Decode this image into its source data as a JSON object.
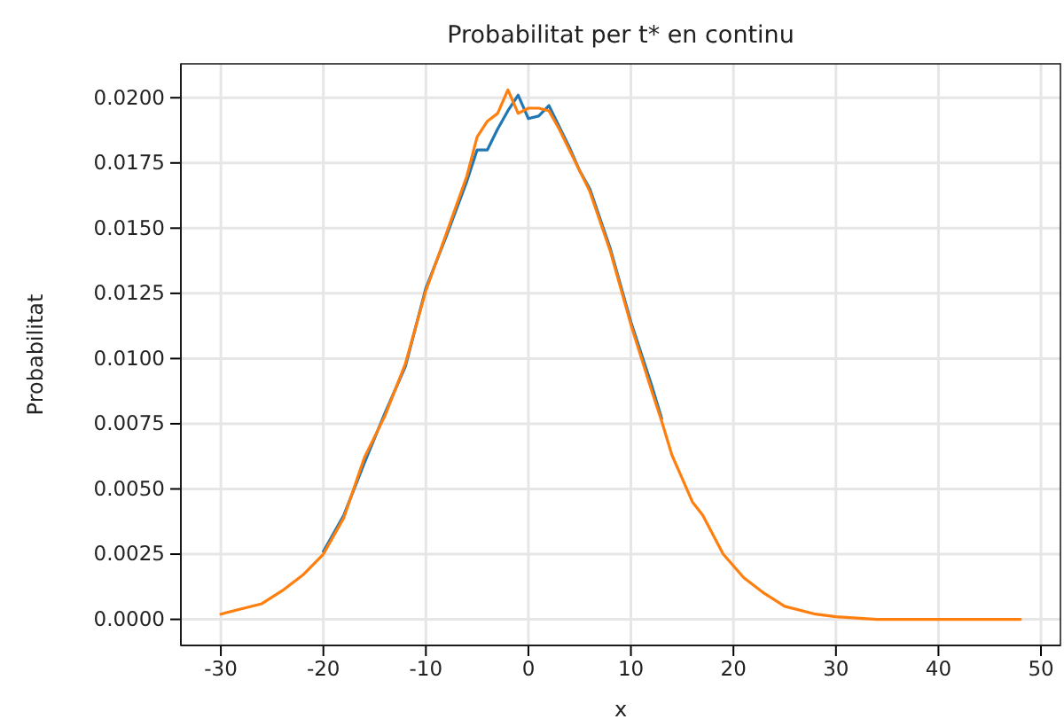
{
  "chart_data": {
    "type": "line",
    "title": "Probabilitat per t* en continu",
    "xlabel": "x",
    "ylabel": "Probabilitat",
    "xlim": [
      -33.9,
      51.9
    ],
    "xticks": [
      -30,
      -20,
      -10,
      0,
      10,
      20,
      30,
      40,
      50
    ],
    "ylim": [
      -0.001,
      0.0213
    ],
    "yticks": [
      {
        "value": 0,
        "label": "0.0000"
      },
      {
        "value": 0.0025,
        "label": "0.0025"
      },
      {
        "value": 0.005,
        "label": "0.0050"
      },
      {
        "value": 0.0075,
        "label": "0.0075"
      },
      {
        "value": 0.01,
        "label": "0.0100"
      },
      {
        "value": 0.0125,
        "label": "0.0125"
      },
      {
        "value": 0.015,
        "label": "0.0150"
      },
      {
        "value": 0.0175,
        "label": "0.0175"
      },
      {
        "value": 0.02,
        "label": "0.0200"
      }
    ],
    "grid": true,
    "series": [
      {
        "color": "#1f77b4",
        "x": [
          -20,
          -18,
          -16,
          -14,
          -12,
          -10,
          -8,
          -6,
          -5,
          -4,
          -3,
          -2,
          -1,
          0,
          1,
          2,
          3,
          4,
          5,
          6,
          8,
          10,
          12,
          13
        ],
        "values": [
          0.0026,
          0.004,
          0.006,
          0.0079,
          0.0097,
          0.0127,
          0.0147,
          0.0168,
          0.018,
          0.018,
          0.0188,
          0.0195,
          0.0201,
          0.0192,
          0.0193,
          0.0197,
          0.0189,
          0.0181,
          0.0172,
          0.0165,
          0.0142,
          0.0114,
          0.009,
          0.0077
        ]
      },
      {
        "color": "#ff7f0e",
        "x": [
          -30,
          -28,
          -26,
          -24,
          -22,
          -20,
          -18,
          -16,
          -14,
          -12,
          -10,
          -8,
          -6,
          -5,
          -4,
          -3,
          -2,
          -1,
          0,
          1,
          2,
          3,
          4,
          5,
          6,
          8,
          10,
          12,
          13,
          14,
          16,
          17,
          19,
          21,
          23,
          25,
          28,
          30,
          34,
          40,
          48
        ],
        "values": [
          0.0002,
          0.0004,
          0.0006,
          0.0011,
          0.0017,
          0.0025,
          0.0039,
          0.0062,
          0.0078,
          0.0098,
          0.0126,
          0.0148,
          0.017,
          0.0185,
          0.0191,
          0.0194,
          0.0203,
          0.0194,
          0.0196,
          0.0196,
          0.0195,
          0.0188,
          0.018,
          0.0172,
          0.0164,
          0.0141,
          0.0113,
          0.0088,
          0.0076,
          0.0063,
          0.0045,
          0.004,
          0.0025,
          0.0016,
          0.001,
          0.0005,
          0.0002,
          0.0001,
          0.0,
          0.0,
          0.0
        ]
      }
    ]
  }
}
